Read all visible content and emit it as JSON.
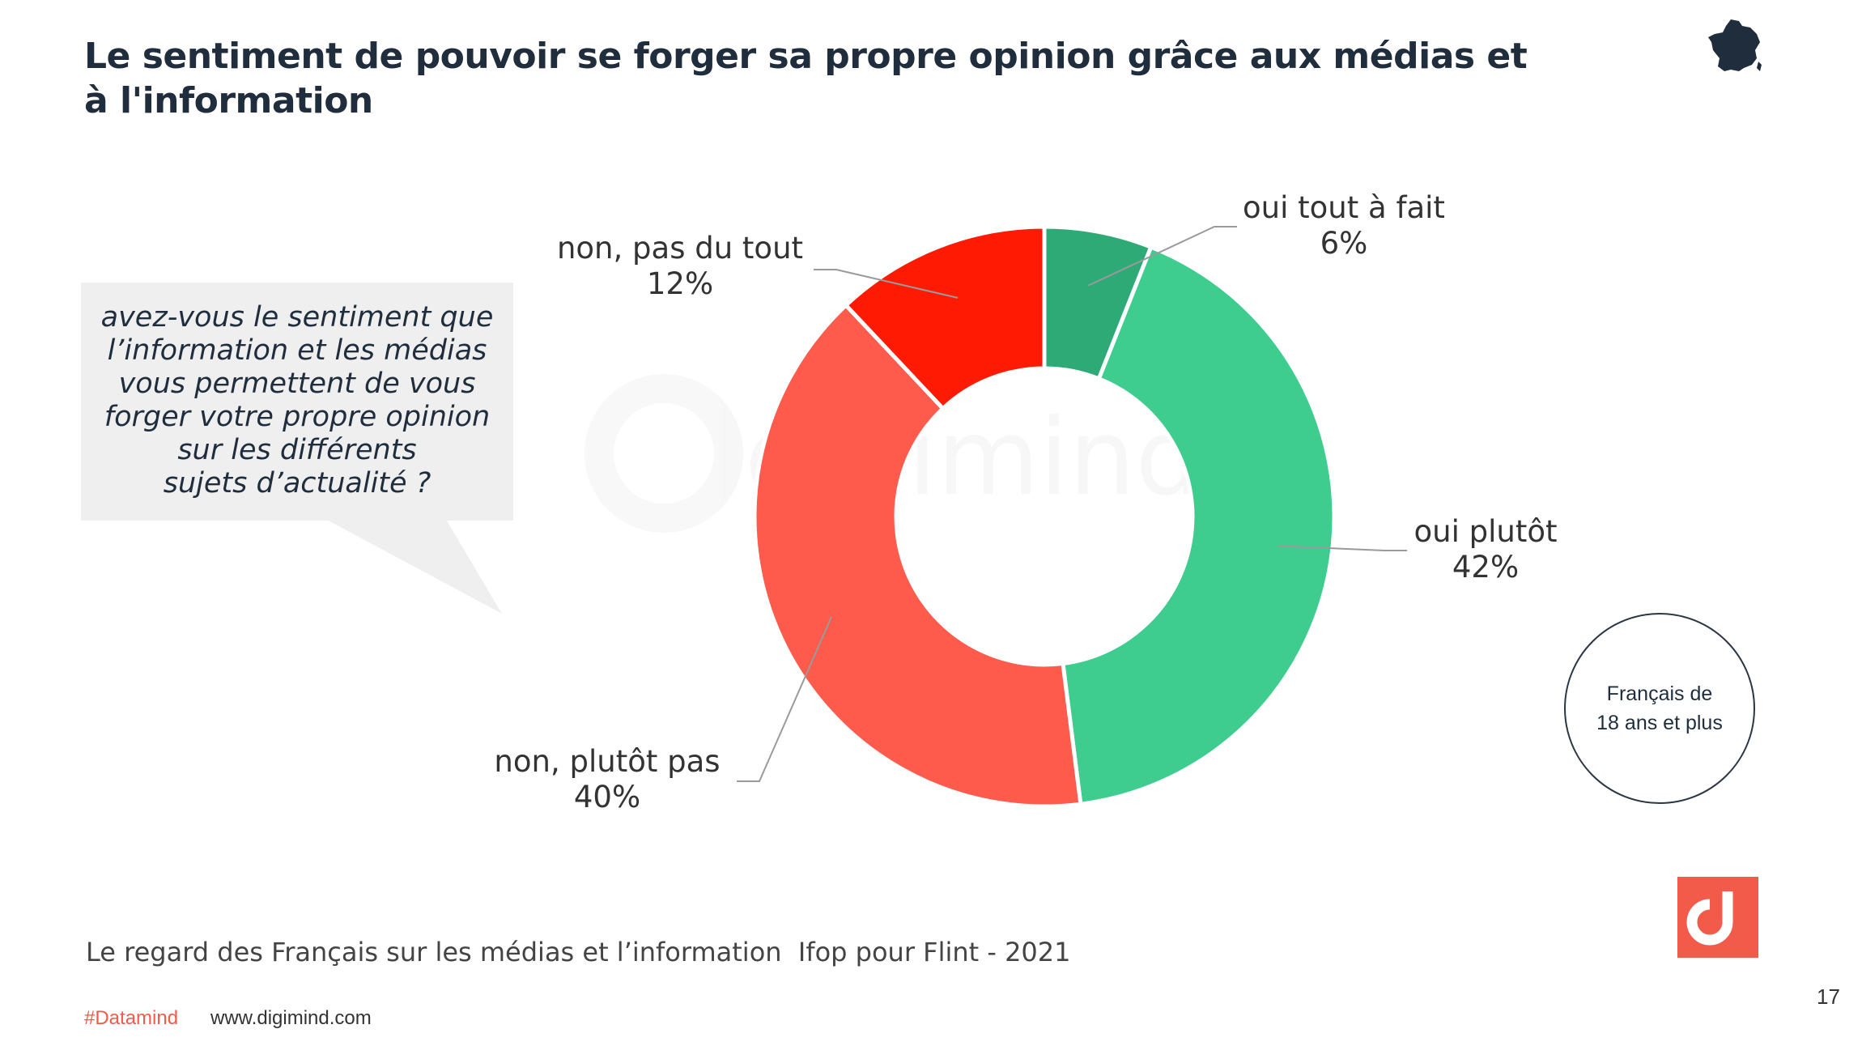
{
  "header": {
    "title": "Le sentiment de pouvoir se forger sa propre opinion grâce aux médias et à l'information"
  },
  "question": {
    "lines": [
      "avez-vous le sentiment que",
      "l’information et les médias",
      "vous permettent de vous",
      "forger votre propre opinion",
      "sur les différents",
      "sujets d’actualité ?"
    ]
  },
  "chart_data": {
    "type": "pie",
    "style": "donut",
    "title": "",
    "slices": [
      {
        "label": "oui tout à fait",
        "value": 6,
        "display": "6%",
        "color": "#2eaa76"
      },
      {
        "label": "oui plutôt",
        "value": 42,
        "display": "42%",
        "color": "#3ecd8f"
      },
      {
        "label": "non, plutôt pas",
        "value": 40,
        "display": "40%",
        "color": "#fe5b4d"
      },
      {
        "label": "non, pas du tout",
        "value": 12,
        "display": "12%",
        "color": "#ff1a03"
      }
    ],
    "legend": "none"
  },
  "population": {
    "line1": "Français de",
    "line2": "18 ans et plus"
  },
  "footer": {
    "source": "Le regard des Français sur les médias et l’information  Ifop pour Flint - 2021",
    "hashtag": "#Datamind",
    "website": "www.digimind.com",
    "page_number": "17"
  },
  "icons": {
    "flag": "france-map-icon",
    "logo": "digimind-logo-icon"
  },
  "colors": {
    "accent": "#f25a4a",
    "title": "#1f2d3d"
  }
}
